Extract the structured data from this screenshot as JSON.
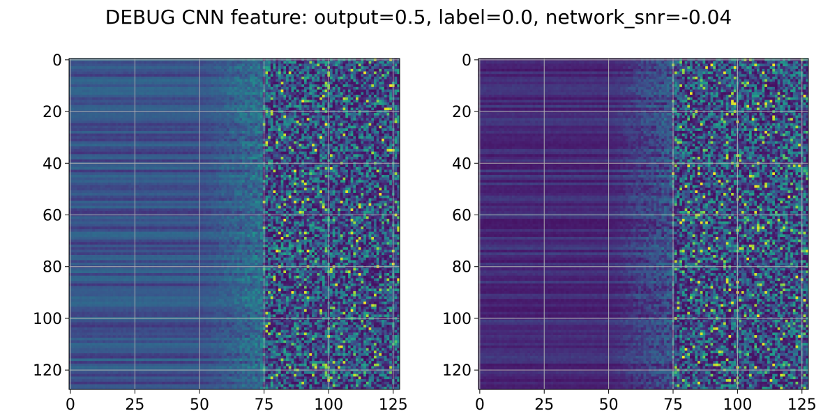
{
  "figure": {
    "title": "DEBUG CNN feature: output=0.5, label=0.0, network_snr=-0.04"
  },
  "chart_data": [
    {
      "type": "heatmap",
      "title": "",
      "xlabel": "",
      "ylabel": "",
      "xlim": [
        0,
        127
      ],
      "ylim": [
        127,
        0
      ],
      "xticks": [
        0,
        25,
        50,
        75,
        100,
        125
      ],
      "yticks": [
        0,
        20,
        40,
        60,
        80,
        100,
        120
      ],
      "grid": true,
      "colormap": "viridis",
      "shape": [
        128,
        128
      ]
    },
    {
      "type": "heatmap",
      "title": "",
      "xlabel": "",
      "ylabel": "",
      "xlim": [
        0,
        127
      ],
      "ylim": [
        127,
        0
      ],
      "xticks": [
        0,
        25,
        50,
        75,
        100,
        125
      ],
      "yticks": [
        0,
        20,
        40,
        60,
        80,
        100,
        120
      ],
      "grid": true,
      "colormap": "viridis",
      "shape": [
        128,
        128
      ]
    }
  ],
  "colors": {
    "background": "#ffffff",
    "grid": "#b0b0b0",
    "axis": "#000000",
    "viridis_low": "#440154",
    "viridis_mid": "#21918c",
    "viridis_high": "#fde725"
  }
}
